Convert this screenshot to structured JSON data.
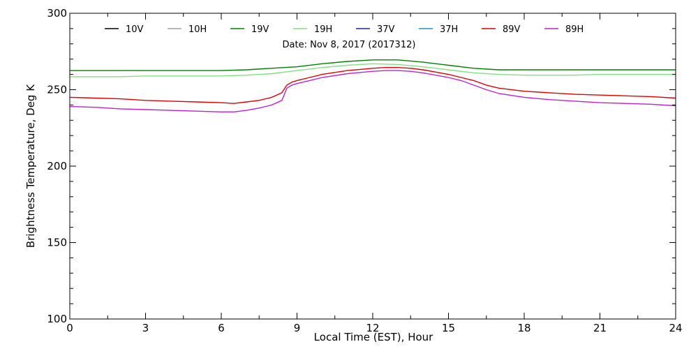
{
  "chart_data": {
    "type": "line",
    "date_text": "Date: Nov  8, 2017 (2017312)",
    "xlabel": "Local Time (EST), Hour",
    "ylabel": "Brightness Temperature, Deg  K",
    "xlim": [
      0,
      24
    ],
    "ylim": [
      100,
      300
    ],
    "x_ticks": [
      0,
      3,
      6,
      9,
      12,
      15,
      18,
      21,
      24
    ],
    "y_ticks": [
      100,
      150,
      200,
      250,
      300
    ],
    "grid": false,
    "legend": [
      {
        "name": "10V",
        "color": "#000000"
      },
      {
        "name": "10H",
        "color": "#a0a0a0"
      },
      {
        "name": "19V",
        "color": "#008000"
      },
      {
        "name": "19H",
        "color": "#80e080"
      },
      {
        "name": "37V",
        "color": "#2020a0"
      },
      {
        "name": "37H",
        "color": "#2090d0"
      },
      {
        "name": "89V",
        "color": "#e00000"
      },
      {
        "name": "89H",
        "color": "#c020d0"
      }
    ],
    "series": [
      {
        "name": "19V",
        "color": "#008000",
        "x": [
          0,
          1,
          2,
          3,
          4,
          5,
          6,
          7,
          8,
          8.5,
          9,
          10,
          11,
          12,
          13,
          14,
          15,
          16,
          17,
          18,
          19,
          20,
          21,
          22,
          23,
          24
        ],
        "y": [
          262.5,
          262.5,
          262.5,
          262.5,
          262.5,
          262.5,
          262.5,
          263,
          264,
          264.5,
          265,
          267,
          268.5,
          269.5,
          269.5,
          268,
          266,
          264,
          263,
          263,
          263,
          263,
          263,
          263,
          263,
          263
        ]
      },
      {
        "name": "19H",
        "color": "#80e080",
        "x": [
          0,
          1,
          2,
          3,
          4,
          5,
          6,
          7,
          8,
          8.5,
          9,
          10,
          11,
          12,
          13,
          14,
          15,
          16,
          17,
          18,
          19,
          20,
          21,
          22,
          23,
          24
        ],
        "y": [
          258.5,
          258.5,
          258.5,
          259,
          259,
          259,
          259,
          259.5,
          260.5,
          261.5,
          262.5,
          264.5,
          266,
          267,
          266.5,
          265,
          263,
          261,
          260,
          259.5,
          259.5,
          259.5,
          260,
          260,
          260,
          260
        ]
      },
      {
        "name": "89V",
        "color": "#e00000",
        "x": [
          0,
          1,
          2,
          3,
          4,
          5,
          6,
          6.5,
          7,
          7.5,
          8,
          8.4,
          8.6,
          8.8,
          9,
          9.5,
          10,
          11,
          12,
          12.5,
          13,
          13.5,
          14,
          15,
          15.5,
          16,
          16.5,
          17,
          18,
          19,
          20,
          21,
          22,
          23,
          24
        ],
        "y": [
          245,
          244.5,
          244,
          243,
          242.5,
          242,
          241.5,
          241,
          242,
          243,
          245,
          248,
          253,
          255,
          256,
          258,
          260,
          262.5,
          264,
          264.5,
          264.5,
          264,
          263,
          260,
          258,
          256,
          253,
          251,
          249,
          248,
          247,
          246.5,
          246,
          245.5,
          244.5
        ]
      },
      {
        "name": "89H",
        "color": "#c020d0",
        "x": [
          0,
          1,
          2,
          3,
          4,
          5,
          6,
          6.5,
          7,
          7.5,
          8,
          8.4,
          8.6,
          8.8,
          9,
          9.5,
          10,
          11,
          12,
          12.5,
          13,
          13.5,
          14,
          15,
          15.5,
          16,
          16.5,
          17,
          18,
          19,
          20,
          21,
          22,
          23,
          24
        ],
        "y": [
          239,
          238.5,
          237.5,
          237,
          236.5,
          236,
          235.5,
          235.5,
          236.5,
          238,
          240,
          243,
          251,
          253,
          254,
          256,
          258,
          260.5,
          262,
          262.5,
          262.5,
          262,
          261,
          258,
          256,
          253,
          250,
          247.5,
          245,
          243.5,
          242.5,
          241.5,
          241,
          240.5,
          239.5
        ]
      }
    ]
  }
}
